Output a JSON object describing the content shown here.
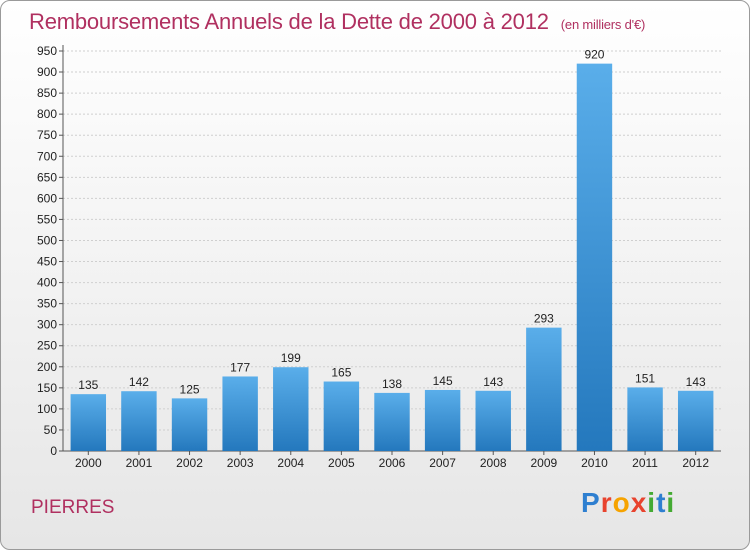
{
  "title": "Remboursements Annuels de la Dette de 2000 à 2012",
  "unit": "(en milliers d'€)",
  "commune": "PIERRES",
  "logo": {
    "letters": [
      "P",
      "r",
      "o",
      "x",
      "i",
      "t",
      "i"
    ],
    "colors": [
      "#2e7fd0",
      "#e8432e",
      "#f6a300",
      "#e8432e",
      "#44aa33",
      "#2e7fd0",
      "#44aa33"
    ]
  },
  "chart_data": {
    "type": "bar",
    "categories": [
      "2000",
      "2001",
      "2002",
      "2003",
      "2004",
      "2005",
      "2006",
      "2007",
      "2008",
      "2009",
      "2010",
      "2011",
      "2012"
    ],
    "values": [
      135,
      142,
      125,
      177,
      199,
      165,
      138,
      145,
      143,
      293,
      920,
      151,
      143
    ],
    "ylim": [
      0,
      950
    ],
    "yticks": [
      0,
      50,
      100,
      150,
      200,
      250,
      300,
      350,
      400,
      450,
      500,
      550,
      600,
      650,
      700,
      750,
      800,
      850,
      900,
      950
    ],
    "grid": true,
    "bar_color": "#3a97de"
  }
}
